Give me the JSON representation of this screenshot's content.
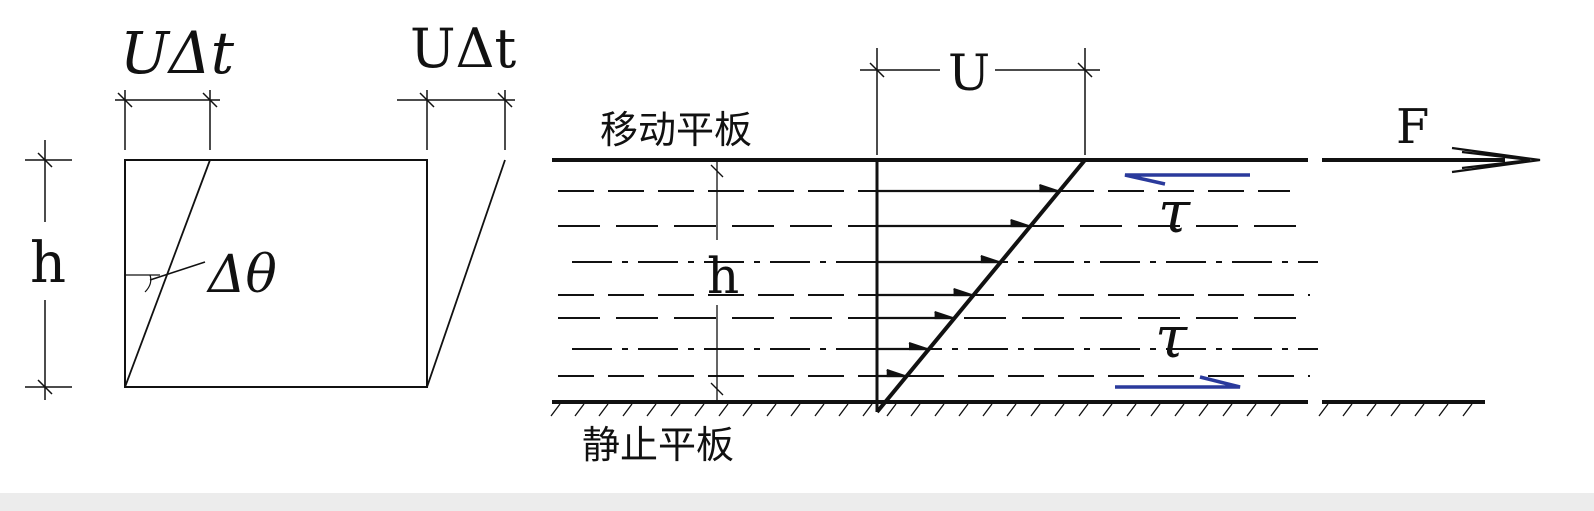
{
  "left_figure": {
    "label_u_dt_left": "UΔt",
    "label_u_dt_right": "UΔt",
    "label_h": "h",
    "label_dtheta": "Δθ"
  },
  "right_figure": {
    "label_top_plate": "移动平板",
    "label_bottom_plate": "静止平板",
    "label_u": "U",
    "label_h": "h",
    "label_force": "F",
    "label_tau_top": "τ",
    "label_tau_bottom": "τ",
    "tau_arrow_color": "#2a3a9c"
  }
}
